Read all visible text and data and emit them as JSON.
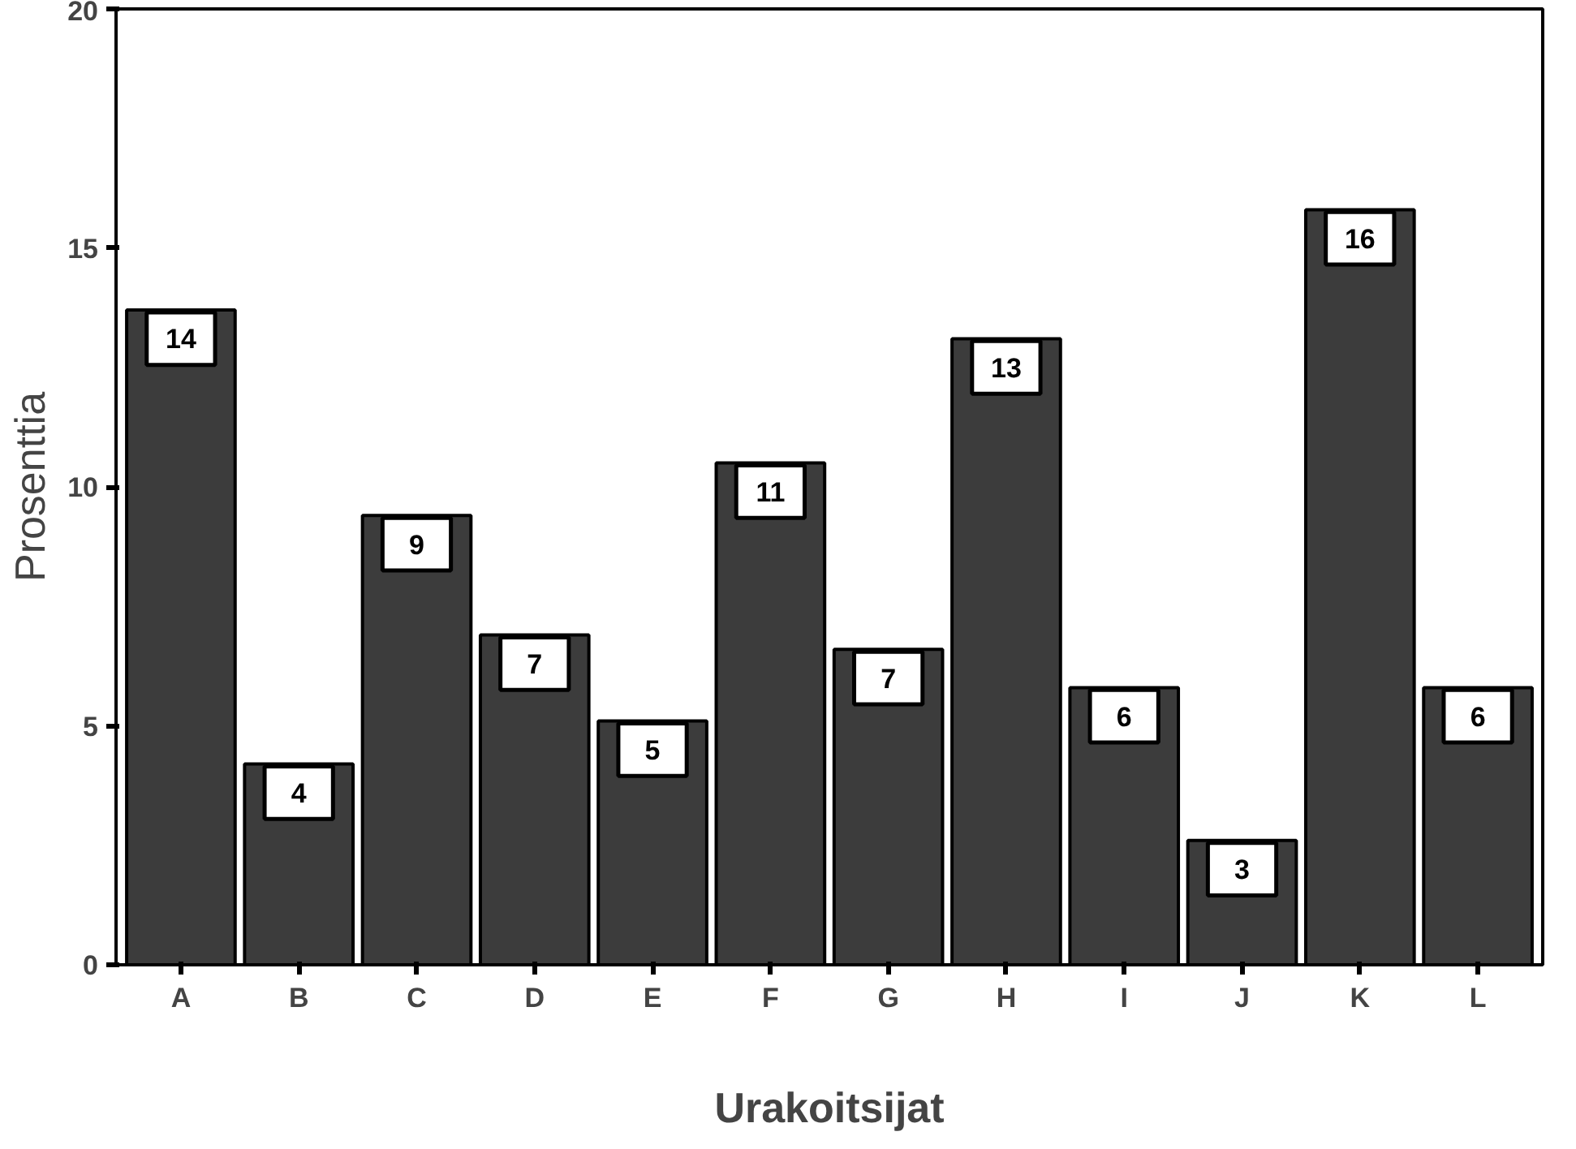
{
  "chart_data": {
    "type": "bar",
    "xlabel": "Urakoitsijat",
    "ylabel": "Prosenttia",
    "categories": [
      "A",
      "B",
      "C",
      "D",
      "E",
      "F",
      "G",
      "H",
      "I",
      "J",
      "K",
      "L"
    ],
    "values": [
      13.7,
      4.2,
      9.4,
      6.9,
      5.1,
      10.5,
      6.6,
      13.1,
      5.8,
      2.6,
      15.8,
      5.8
    ],
    "value_labels": [
      "14",
      "4",
      "9",
      "7",
      "5",
      "11",
      "7",
      "13",
      "6",
      "3",
      "16",
      "6"
    ],
    "color": "#3c3c3c",
    "ylim": [
      0,
      20
    ],
    "yticks": [
      0,
      5,
      10,
      15,
      20
    ],
    "grid": false
  }
}
